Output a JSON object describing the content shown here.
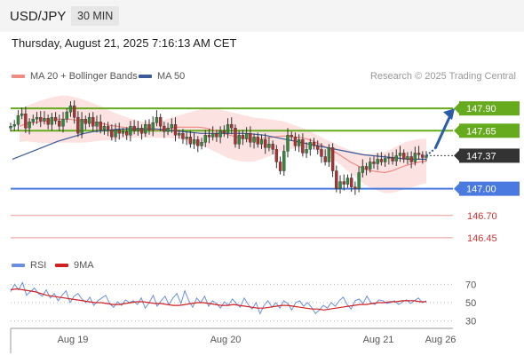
{
  "header": {
    "pair": "USD/JPY",
    "timeframe": "30 MIN",
    "datetime": "Thursday, August 21, 2025 7:16:13 AM CET",
    "credit": "Research © 2025 Trading Central"
  },
  "colors": {
    "resistance": "#66aa1e",
    "support": "#4a79e0",
    "ma20": "#f08a84",
    "ma50": "#3b5a9a",
    "bands": "#fbd9d7",
    "up": "#2e8b3b",
    "down": "#b03030",
    "rsi": "#6a8fe0",
    "rsi_ma": "#d02020",
    "arrow": "#2a5ca8",
    "current": "#333333"
  },
  "chart_data": [
    {
      "type": "candlestick",
      "title": "",
      "legend": [
        {
          "name": "MA 20 + Bollinger Bands",
          "color": "#f08a84"
        },
        {
          "name": "MA 50",
          "color": "#3b5a9a"
        }
      ],
      "levels": [
        {
          "value": 147.9,
          "label": "147.90",
          "kind": "resistance"
        },
        {
          "value": 147.65,
          "label": "147.65",
          "kind": "resistance"
        },
        {
          "value": 147.37,
          "label": "147.37",
          "kind": "current"
        },
        {
          "value": 147.0,
          "label": "147.00",
          "kind": "support"
        },
        {
          "value": 146.7,
          "label": "146.70",
          "kind": "minor"
        },
        {
          "value": 146.45,
          "label": "146.45",
          "kind": "minor"
        }
      ],
      "x_ticks": [
        "Aug 19",
        "Aug 20",
        "Aug 21",
        "Aug 26"
      ],
      "ylim": [
        146.28,
        148.17
      ],
      "forecast_target": 147.9,
      "close": [
        147.7,
        147.72,
        147.82,
        147.84,
        147.68,
        147.75,
        147.78,
        147.8,
        147.76,
        147.79,
        147.72,
        147.8,
        147.76,
        147.7,
        147.78,
        147.86,
        147.93,
        147.8,
        147.62,
        147.78,
        147.73,
        147.8,
        147.7,
        147.75,
        147.66,
        147.7,
        147.66,
        147.58,
        147.66,
        147.62,
        147.64,
        147.6,
        147.7,
        147.65,
        147.68,
        147.62,
        147.72,
        147.66,
        147.74,
        147.8,
        147.7,
        147.64,
        147.68,
        147.72,
        147.6,
        147.62,
        147.56,
        147.58,
        147.5,
        147.55,
        147.48,
        147.52,
        147.6,
        147.58,
        147.62,
        147.58,
        147.65,
        147.62,
        147.72,
        147.68,
        147.5,
        147.6,
        147.56,
        147.62,
        147.52,
        147.58,
        147.5,
        147.55,
        147.46,
        147.5,
        147.44,
        147.3,
        147.2,
        147.42,
        147.6,
        147.58,
        147.48,
        147.55,
        147.4,
        147.44,
        147.52,
        147.48,
        147.44,
        147.36,
        147.3,
        147.46,
        147.2,
        147.0,
        147.08,
        147.05,
        147.12,
        147.02,
        147.0,
        147.18,
        147.25,
        147.22,
        147.3,
        147.28,
        147.33,
        147.3,
        147.34,
        147.35,
        147.31,
        147.37,
        147.4,
        147.33,
        147.36,
        147.3,
        147.4,
        147.38,
        147.35,
        147.37
      ],
      "ma20": [
        147.7,
        147.73,
        147.74,
        147.75,
        147.76,
        147.77,
        147.78,
        147.78,
        147.77,
        147.76,
        147.75,
        147.74,
        147.73,
        147.71,
        147.7,
        147.69,
        147.68,
        147.67,
        147.66,
        147.66,
        147.66,
        147.67,
        147.68,
        147.69,
        147.69,
        147.69,
        147.69,
        147.68,
        147.66,
        147.64,
        147.61,
        147.59,
        147.57,
        147.56,
        147.55,
        147.56,
        147.57,
        147.58,
        147.59,
        147.59,
        147.58,
        147.57,
        147.55,
        147.52,
        147.48,
        147.44,
        147.4,
        147.35,
        147.3,
        147.26,
        147.22,
        147.2,
        147.19,
        147.18,
        147.2,
        147.23,
        147.26,
        147.28,
        147.3,
        147.31
      ],
      "ma50": [
        147.33,
        147.37,
        147.41,
        147.45,
        147.49,
        147.53,
        147.56,
        147.59,
        147.62,
        147.64,
        147.65,
        147.66,
        147.67,
        147.67,
        147.67,
        147.67,
        147.67,
        147.66,
        147.65,
        147.64,
        147.63,
        147.62,
        147.62,
        147.62,
        147.62,
        147.62,
        147.62,
        147.61,
        147.6,
        147.58,
        147.56,
        147.54,
        147.52,
        147.5,
        147.48,
        147.46,
        147.44,
        147.42,
        147.4,
        147.38,
        147.37,
        147.36,
        147.35,
        147.34,
        147.33,
        147.33,
        147.33
      ],
      "band_width": 0.22
    },
    {
      "type": "line",
      "title": "",
      "legend": [
        {
          "name": "RSI",
          "color": "#6a8fe0"
        },
        {
          "name": "9MA",
          "color": "#d02020"
        }
      ],
      "y_ticks": [
        70,
        50,
        30
      ],
      "ylim": [
        20,
        80
      ],
      "rsi": [
        62,
        70,
        64,
        72,
        58,
        62,
        66,
        60,
        57,
        64,
        55,
        60,
        52,
        58,
        63,
        50,
        57,
        60,
        54,
        50,
        56,
        47,
        52,
        55,
        58,
        49,
        45,
        51,
        47,
        53,
        50,
        52,
        48,
        55,
        44,
        50,
        58,
        46,
        52,
        57,
        48,
        55,
        60,
        49,
        63,
        52,
        45,
        55,
        50,
        57,
        46,
        52,
        49,
        44,
        51,
        47,
        54,
        49,
        45,
        55,
        48,
        43,
        50,
        38,
        47,
        52,
        45,
        50,
        44,
        52,
        49,
        42,
        50,
        52,
        46,
        50,
        45,
        38,
        42,
        47,
        44,
        50,
        46,
        52,
        56,
        48,
        43,
        52,
        54,
        49,
        57,
        50,
        48,
        53,
        52,
        49,
        50,
        52,
        48,
        51,
        53,
        49,
        52,
        55,
        50,
        52
      ],
      "rsi_ma": [
        64,
        65,
        64,
        63,
        62,
        60,
        58,
        57,
        56,
        55,
        54,
        53,
        52,
        51,
        50,
        50,
        49,
        48,
        48,
        49,
        50,
        51,
        51,
        50,
        49,
        49,
        48,
        47,
        47,
        48,
        49,
        50,
        50,
        49,
        48,
        47,
        47,
        48,
        47,
        46,
        45,
        44,
        44,
        45,
        46,
        47,
        47,
        46,
        45,
        44,
        43,
        43,
        42,
        43,
        44,
        45,
        46,
        47,
        48,
        48,
        49,
        50,
        50,
        51,
        51,
        52,
        52,
        52,
        51,
        51
      ]
    }
  ]
}
